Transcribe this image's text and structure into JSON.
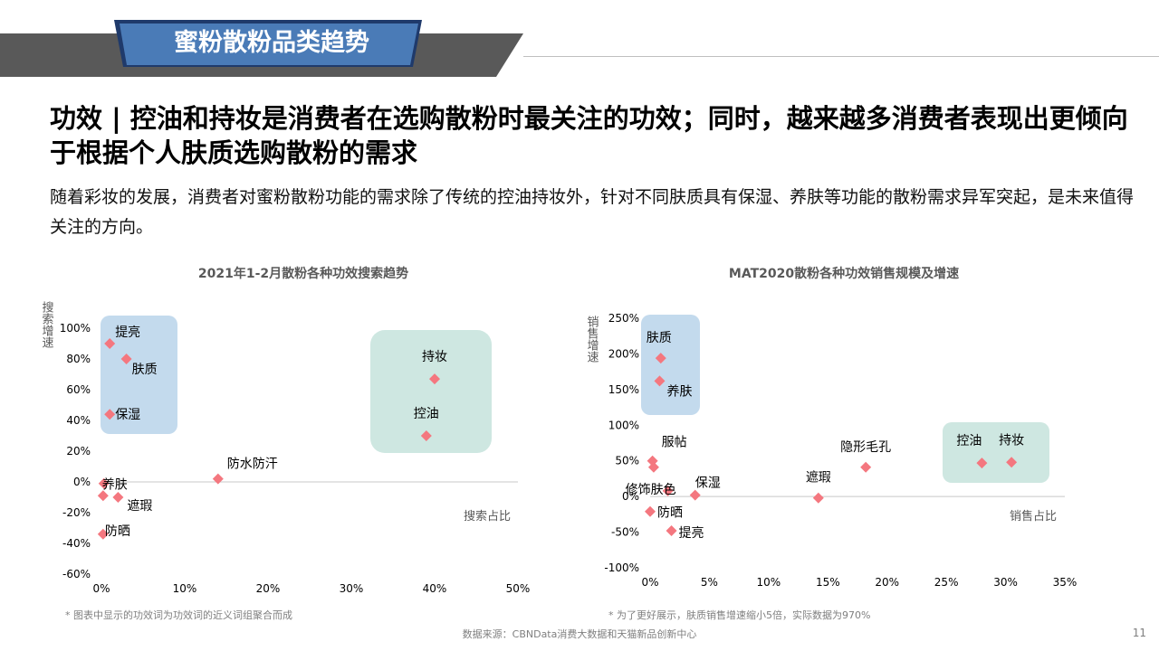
{
  "header": {
    "section_title": "蜜粉散粉品类趋势"
  },
  "headline": "功效 | 控油和持妆是消费者在选购散粉时最关注的功效；同时，越来越多消费者表现出更倾向于根据个人肤质选购散粉的需求",
  "description": "随着彩妆的发展，消费者对蜜粉散粉功能的需求除了传统的控油持妆外，针对不同肤质具有保湿、养肤等功能的散粉需求异军突起，是未来值得关注的方向。",
  "colors": {
    "banner_blue": "#4a7bb7",
    "banner_gray": "#595959",
    "point": "#f4777f",
    "box_blue": "#b9d3ea",
    "box_green": "#c6e3dc"
  },
  "chart_data": [
    {
      "type": "scatter",
      "title": "2021年1-2月散粉各种功效搜索趋势",
      "xlabel": "搜索占比",
      "ylabel": "搜索增速",
      "xlim": [
        0,
        50
      ],
      "ylim": [
        -60,
        100
      ],
      "x_ticks": [
        "0%",
        "10%",
        "20%",
        "30%",
        "40%",
        "50%"
      ],
      "y_ticks": [
        "-60%",
        "-40%",
        "-20%",
        "0%",
        "20%",
        "40%",
        "60%",
        "80%",
        "100%"
      ],
      "points": [
        {
          "label": "提亮",
          "x": 1.0,
          "y": 90
        },
        {
          "label": "肤质",
          "x": 3.0,
          "y": 80
        },
        {
          "label": "保湿",
          "x": 1.0,
          "y": 44
        },
        {
          "label": "持妆",
          "x": 40.0,
          "y": 67
        },
        {
          "label": "控油",
          "x": 39.0,
          "y": 30
        },
        {
          "label": "防水防汗",
          "x": 14.0,
          "y": 2
        },
        {
          "label": "养肤",
          "x": 0.3,
          "y": -1
        },
        {
          "label": "",
          "x": 0.2,
          "y": -9
        },
        {
          "label": "遮瑕",
          "x": 2.0,
          "y": -10
        },
        {
          "label": "防晒",
          "x": 0.2,
          "y": -34
        }
      ],
      "highlight_groups": [
        {
          "color": "blue",
          "members": [
            "提亮",
            "肤质",
            "保湿"
          ]
        },
        {
          "color": "green",
          "members": [
            "持妆",
            "控油"
          ]
        }
      ]
    },
    {
      "type": "scatter",
      "title": "MAT2020散粉各种功效销售规模及增速",
      "xlabel": "销售占比",
      "ylabel": "销售增速",
      "xlim": [
        0,
        35
      ],
      "ylim": [
        -100,
        250
      ],
      "x_ticks": [
        "0%",
        "5%",
        "10%",
        "15%",
        "20%",
        "25%",
        "30%",
        "35%"
      ],
      "y_ticks": [
        "-100%",
        "-50%",
        "0%",
        "50%",
        "100%",
        "150%",
        "200%",
        "250%"
      ],
      "points": [
        {
          "label": "肤质",
          "x": 0.9,
          "y": 194
        },
        {
          "label": "养肤",
          "x": 0.8,
          "y": 162
        },
        {
          "label": "服帖",
          "x": 0.2,
          "y": 50
        },
        {
          "label": "",
          "x": 0.3,
          "y": 41
        },
        {
          "label": "修饰肤色",
          "x": 1.5,
          "y": 8
        },
        {
          "label": "保湿",
          "x": 3.8,
          "y": 2
        },
        {
          "label": "隐形毛孔",
          "x": 18.2,
          "y": 41
        },
        {
          "label": "遮瑕",
          "x": 14.2,
          "y": -2
        },
        {
          "label": "控油",
          "x": 28.0,
          "y": 47
        },
        {
          "label": "持妆",
          "x": 30.5,
          "y": 48
        },
        {
          "label": "防晒",
          "x": 0.0,
          "y": -21
        },
        {
          "label": "提亮",
          "x": 1.8,
          "y": -48
        }
      ],
      "highlight_groups": [
        {
          "color": "blue",
          "members": [
            "肤质",
            "养肤"
          ]
        },
        {
          "color": "green",
          "members": [
            "控油",
            "持妆"
          ]
        }
      ]
    }
  ],
  "notes": {
    "left": "* 图表中显示的功效词为功效词的近义词组聚合而成",
    "right": "* 为了更好展示，肤质销售增速缩小5倍，实际数据为970%"
  },
  "source": "数据来源：CBNData消费大数据和天猫新品创新中心",
  "page_number": "11"
}
